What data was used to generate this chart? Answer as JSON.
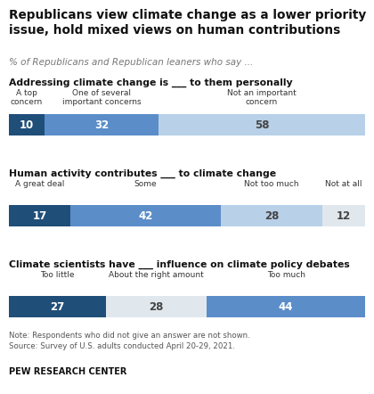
{
  "title": "Republicans view climate change as a lower priority\nissue, hold mixed views on human contributions",
  "subtitle": "% of Republicans and Republican leaners who say ...",
  "chart1": {
    "label": "Addressing climate change is ___ to them personally",
    "categories": [
      "A top\nconcern",
      "One of several\nimportant concerns",
      "Not an important\nconcern"
    ],
    "values": [
      10,
      32,
      58
    ],
    "colors": [
      "#1f4e79",
      "#5b8dc9",
      "#b8d0e8"
    ]
  },
  "chart2": {
    "label": "Human activity contributes ___ to climate change",
    "categories": [
      "A great deal",
      "Some",
      "Not too much",
      "Not at all"
    ],
    "values": [
      17,
      42,
      28,
      12
    ],
    "colors": [
      "#1f4e79",
      "#5b8dc9",
      "#b8d0e8",
      "#e0e8ee"
    ]
  },
  "chart3": {
    "label": "Climate scientists have ___ influence on climate policy debates",
    "categories": [
      "Too little",
      "About the right amount",
      "Too much"
    ],
    "values": [
      27,
      28,
      44
    ],
    "colors": [
      "#1f4e79",
      "#e0e8ee",
      "#5b8dc9"
    ]
  },
  "note": "Note: Respondents who did not give an answer are not shown.\nSource: Survey of U.S. adults conducted April 20-29, 2021.",
  "branding": "PEW RESEARCH CENTER",
  "bg_color": "#ffffff",
  "bar_text_colors": {
    "dark": "#ffffff",
    "light": "#444444"
  }
}
